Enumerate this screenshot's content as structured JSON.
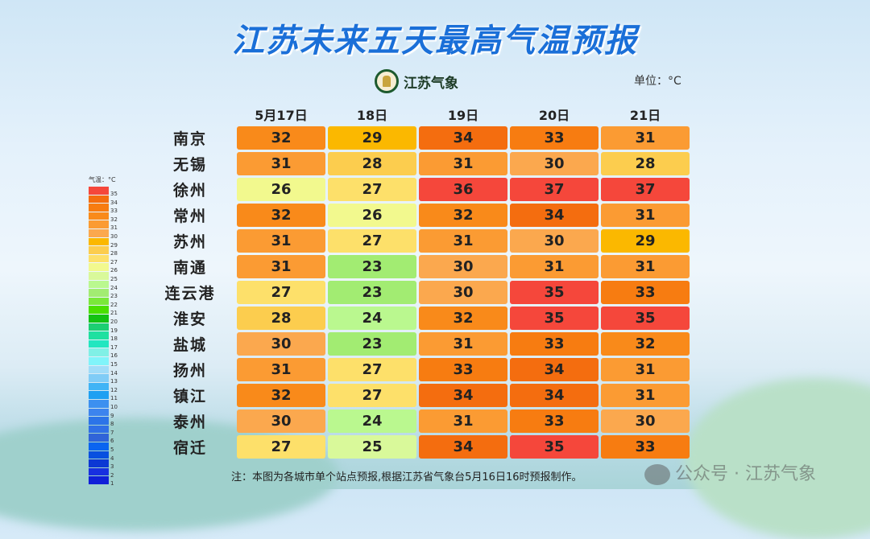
{
  "header": {
    "title": "江苏未来五天最高气温预报",
    "logo_text": "江苏气象",
    "unit": "单位：°C"
  },
  "chart_data": {
    "type": "heatmap",
    "title": "江苏未来五天最高气温预报",
    "columns": [
      "5月17日",
      "18日",
      "19日",
      "20日",
      "21日"
    ],
    "rows": [
      "南京",
      "无锡",
      "徐州",
      "常州",
      "苏州",
      "南通",
      "连云港",
      "淮安",
      "盐城",
      "扬州",
      "镇江",
      "泰州",
      "宿迁"
    ],
    "values": [
      [
        32,
        29,
        34,
        33,
        31
      ],
      [
        31,
        28,
        31,
        30,
        28
      ],
      [
        26,
        27,
        36,
        37,
        37
      ],
      [
        32,
        26,
        32,
        34,
        31
      ],
      [
        31,
        27,
        31,
        30,
        29
      ],
      [
        31,
        23,
        30,
        31,
        31
      ],
      [
        27,
        23,
        30,
        35,
        33
      ],
      [
        28,
        24,
        32,
        35,
        35
      ],
      [
        30,
        23,
        31,
        33,
        32
      ],
      [
        31,
        27,
        33,
        34,
        31
      ],
      [
        32,
        27,
        34,
        34,
        31
      ],
      [
        30,
        24,
        31,
        33,
        30
      ],
      [
        27,
        25,
        34,
        35,
        33
      ]
    ],
    "legend": {
      "title": "气温：°C",
      "labels": [
        35,
        34,
        33,
        32,
        31,
        30,
        29,
        28,
        27,
        26,
        25,
        24,
        23,
        22,
        21,
        20,
        19,
        18,
        17,
        16,
        15,
        14,
        13,
        12,
        11,
        10,
        9,
        8,
        7,
        6,
        5,
        4,
        3,
        2,
        1
      ],
      "colors": [
        "#f5473b",
        "#f46d0f",
        "#f77c11",
        "#f98a1a",
        "#fb9b33",
        "#fba84e",
        "#fbb800",
        "#fccd4e",
        "#fde06a",
        "#f2f98e",
        "#d9f99a",
        "#baf88f",
        "#a2ec72",
        "#7ae83a",
        "#4ae000",
        "#13c213",
        "#1ccf73",
        "#1fe0a0",
        "#22e6c0",
        "#80f0e6",
        "#80f4fa",
        "#a0dcf8",
        "#80ccf6",
        "#40b4f6",
        "#1ea0f2",
        "#3c90f0",
        "#3c84ee",
        "#2c74e8",
        "#3070e6",
        "#3064d8",
        "#0a64f0",
        "#0850e0",
        "#0c38d4",
        "#1830e0",
        "#1020d8"
      ]
    }
  },
  "note": "注：本图为各城市单个站点预报,根据江苏省气象台5月16日16时预报制作。",
  "watermark": "公众号 · 江苏气象"
}
